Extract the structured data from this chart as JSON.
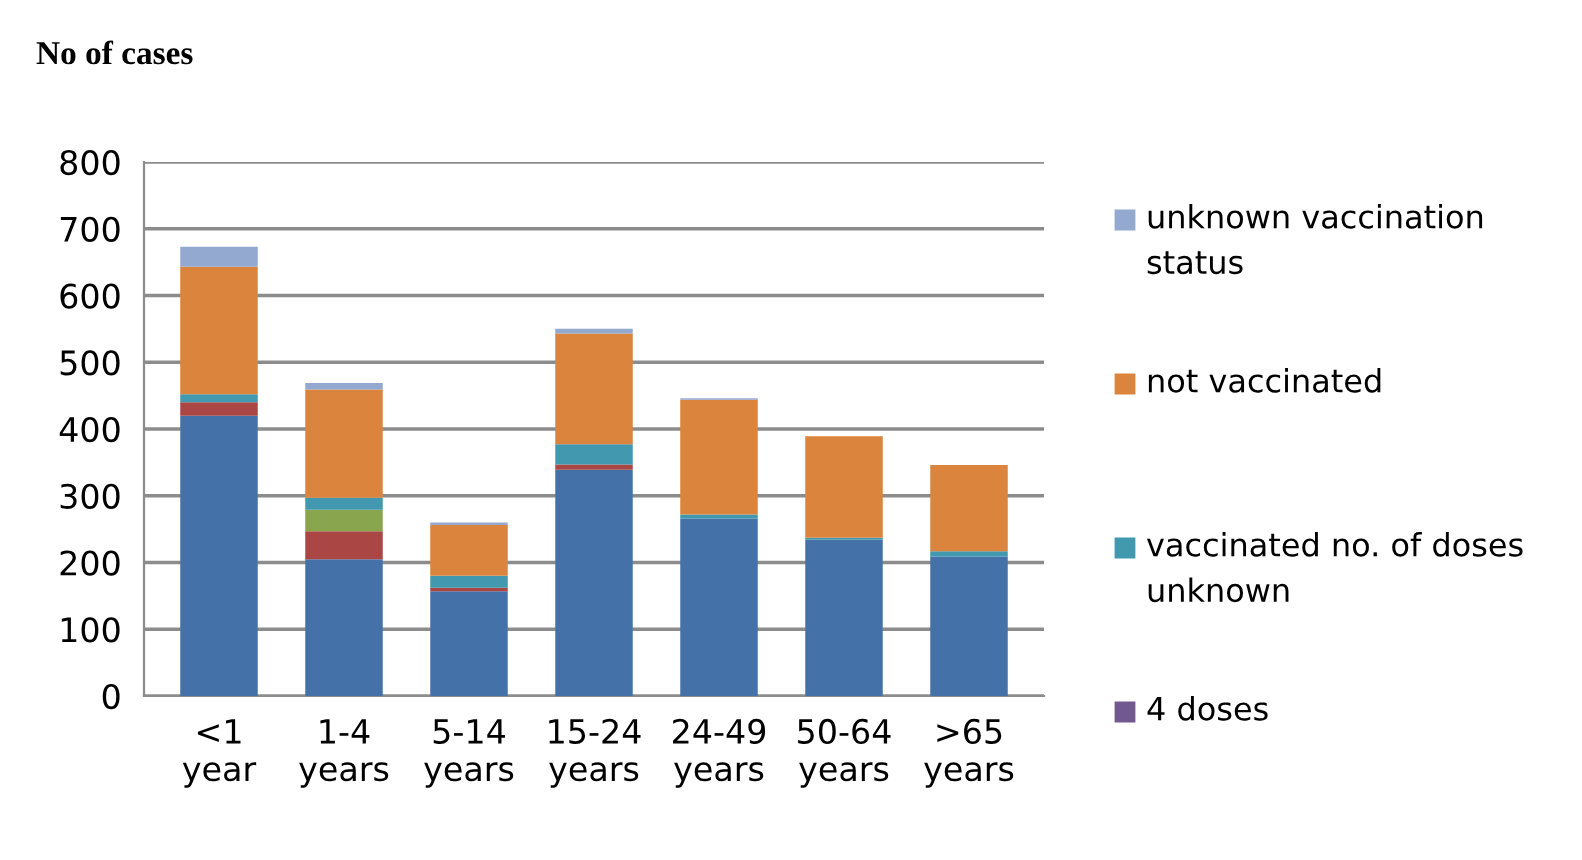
{
  "chart_data": {
    "type": "bar",
    "stacked": true,
    "title": "No of cases",
    "categories": [
      "<1\nyear",
      "1-4\nyears",
      "5-14\nyears",
      "15-24\nyears",
      "24-49\nyears",
      "50-64\nyears",
      ">65\nyears"
    ],
    "series": [
      {
        "color": "#4472a8",
        "values": [
          420,
          205,
          157,
          339,
          266,
          234,
          209
        ]
      },
      {
        "color": "#aa4643",
        "values": [
          20,
          42,
          5,
          8,
          0,
          0,
          0
        ]
      },
      {
        "color": "#89a54e",
        "values": [
          0,
          32,
          0,
          0,
          0,
          0,
          0
        ]
      },
      {
        "name": "4 doses",
        "color": "#71588f",
        "values": [
          0,
          0,
          0,
          0,
          0,
          0,
          0
        ]
      },
      {
        "name": "vaccinated no. of doses unknown",
        "color": "#4198af",
        "values": [
          12,
          18,
          18,
          30,
          6,
          3,
          8
        ]
      },
      {
        "name": "not vaccinated",
        "color": "#db843d",
        "values": [
          191,
          162,
          76,
          166,
          172,
          152,
          129
        ]
      },
      {
        "name": "unknown vaccination status",
        "color": "#93a9d0",
        "values": [
          30,
          10,
          4,
          7,
          2,
          0,
          0
        ]
      }
    ],
    "ylim": [
      0,
      800
    ],
    "yticks": [
      0,
      100,
      200,
      300,
      400,
      500,
      600,
      700,
      800
    ],
    "grid": "y",
    "legend": "right"
  }
}
